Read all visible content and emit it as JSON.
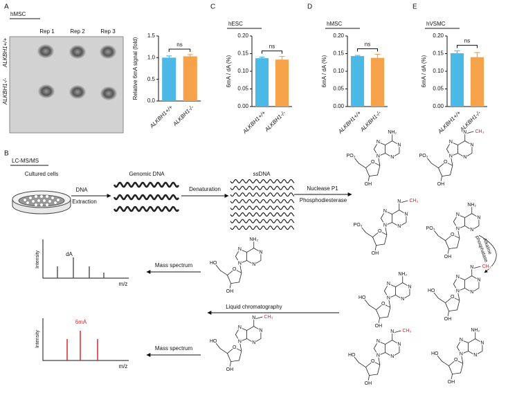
{
  "panels": {
    "a": "A",
    "b": "B",
    "c": "C",
    "d": "D",
    "e": "E"
  },
  "dot_blot": {
    "cell": "hMSC",
    "columns": [
      "Rep 1",
      "Rep 2",
      "Rep 3"
    ],
    "rows": [
      "ALKBH1+/+",
      "ALKBH1-/-"
    ]
  },
  "chart_data": [
    {
      "type": "bar",
      "ylabel": "Relative 6mA signal (fold)",
      "categories": [
        "ALKBH1+/+",
        "ALKBH1-/-"
      ],
      "values": [
        1.0,
        1.03
      ],
      "errors": [
        0.04,
        0.04
      ],
      "colors": [
        "#4cb8e6",
        "#f5a24b"
      ],
      "ylim": [
        0,
        1.5
      ],
      "yticks": [
        {
          "value": 0,
          "label": "0.0"
        },
        {
          "value": 0.5,
          "label": "0.5"
        },
        {
          "value": 1,
          "label": "1.0"
        },
        {
          "value": 1.5,
          "label": "1.5"
        }
      ],
      "annotation": "ns"
    },
    {
      "type": "bar",
      "title": "hESC",
      "ylabel": "6mA / dA (%)",
      "categories": [
        "ALKBH1+/+",
        "ALKBH1-/-"
      ],
      "values": [
        0.137,
        0.133
      ],
      "errors": [
        0.003,
        0.009
      ],
      "colors": [
        "#4cb8e6",
        "#f5a24b"
      ],
      "ylim": [
        0,
        0.2
      ],
      "yticks": [
        {
          "value": 0,
          "label": "0.00"
        },
        {
          "value": 0.05,
          "label": "0.05"
        },
        {
          "value": 0.1,
          "label": "0.10"
        },
        {
          "value": 0.15,
          "label": "0.15"
        },
        {
          "value": 0.2,
          "label": "0.20"
        }
      ],
      "annotation": "ns"
    },
    {
      "type": "bar",
      "title": "hMSC",
      "ylabel": "6mA / dA (%)",
      "categories": [
        "ALKBH1+/+",
        "ALKBH1-/-"
      ],
      "values": [
        0.143,
        0.138
      ],
      "errors": [
        0.002,
        0.01
      ],
      "colors": [
        "#4cb8e6",
        "#f5a24b"
      ],
      "ylim": [
        0,
        0.2
      ],
      "yticks": [
        {
          "value": 0,
          "label": "0.00"
        },
        {
          "value": 0.05,
          "label": "0.05"
        },
        {
          "value": 0.1,
          "label": "0.10"
        },
        {
          "value": 0.15,
          "label": "0.15"
        },
        {
          "value": 0.2,
          "label": "0.20"
        }
      ],
      "annotation": "ns"
    },
    {
      "type": "bar",
      "title": "hVSMC",
      "ylabel": "6mA / dA (%)",
      "categories": [
        "ALKBH1+/+",
        "ALKBH1-/-"
      ],
      "values": [
        0.151,
        0.14
      ],
      "errors": [
        0.007,
        0.013
      ],
      "colors": [
        "#4cb8e6",
        "#f5a24b"
      ],
      "ylim": [
        0,
        0.2
      ],
      "yticks": [
        {
          "value": 0,
          "label": "0.00"
        },
        {
          "value": 0.05,
          "label": "0.05"
        },
        {
          "value": 0.1,
          "label": "0.10"
        },
        {
          "value": 0.15,
          "label": "0.15"
        },
        {
          "value": 0.2,
          "label": "0.20"
        }
      ],
      "annotation": "ns"
    }
  ],
  "diagram": {
    "method": "LC-MS/MS",
    "cells": "Cultured cells",
    "extraction": [
      "DNA",
      "Extraction"
    ],
    "genomic": "Genomic DNA",
    "denaturation": "Denaturation",
    "ssdna": "ssDNA",
    "digestion": [
      "Nuclease P1",
      "Phosphodiesterase"
    ],
    "dephosphorylation": [
      "Alkaline",
      "phosphatase"
    ],
    "chromatography": "Liquid chromatography",
    "mass_spectrum": [
      "Mass spectrum",
      "Mass spectrum"
    ],
    "spectra": [
      {
        "peak": "dA",
        "ylabel": "Intensity",
        "xlabel": "m/z"
      },
      {
        "peak": "6mA",
        "ylabel": "Intensity",
        "xlabel": "m/z"
      }
    ],
    "structures": [
      {
        "amine": "NH₂",
        "ring": [
          "N",
          "N",
          "N",
          "N"
        ],
        "ring_o": "O",
        "hydroxyl": "OH",
        "end": "PO₃"
      },
      {
        "amine": "N",
        "methyl": "CH₃",
        "ring": [
          "N",
          "N",
          "N",
          "N"
        ],
        "ring_o": "O",
        "hydroxyl": "OH",
        "end": "PO₃"
      },
      {
        "amine": "N",
        "methyl": "CH₃",
        "ring": [
          "N",
          "N",
          "N",
          "N"
        ],
        "ring_o": "O",
        "hydroxyl": "OH",
        "end": "PO₃"
      },
      {
        "amine": "NH₂",
        "ring": [
          "N",
          "N",
          "N",
          "N"
        ],
        "ring_o": "O",
        "hydroxyl": "OH",
        "end": "PO₃"
      },
      {
        "amine": "NH₂",
        "ring": [
          "N",
          "N",
          "N",
          "N"
        ],
        "ring_o": "O",
        "hydroxyl": "OH",
        "end": "HO"
      },
      {
        "amine": "N",
        "methyl": "CH₃",
        "ring": [
          "N",
          "N",
          "N",
          "N"
        ],
        "ring_o": "O",
        "hydroxyl": "OH",
        "end": "HO"
      },
      {
        "amine": "N",
        "methyl": "CH₃",
        "ring": [
          "N",
          "N",
          "N",
          "N"
        ],
        "ring_o": "O",
        "hydroxyl": "OH",
        "end": "HO"
      },
      {
        "amine": "NH₂",
        "ring": [
          "N",
          "N",
          "N",
          "N"
        ],
        "ring_o": "O",
        "hydroxyl": "OH",
        "end": "HO"
      },
      {
        "amine": "NH₂",
        "ring": [
          "N",
          "N",
          "N",
          "N"
        ],
        "ring_o": "O",
        "hydroxyl": "OH",
        "end": "HO"
      },
      {
        "amine": "N",
        "methyl": "CH₃",
        "ring": [
          "N",
          "N",
          "N",
          "N"
        ],
        "ring_o": "O",
        "hydroxyl": "OH",
        "end": "HO"
      }
    ]
  }
}
